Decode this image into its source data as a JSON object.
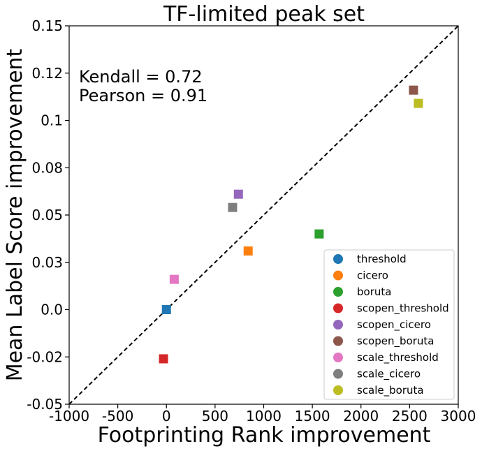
{
  "chart_data": {
    "type": "scatter",
    "title": "TF-limited peak set",
    "xlabel": "Footprinting Rank improvement",
    "ylabel": "Mean Label Score improvement",
    "xlim": [
      -1000,
      3000
    ],
    "ylim": [
      -0.05,
      0.15
    ],
    "x_ticks": [
      {
        "value": -1000,
        "label": "-1000"
      },
      {
        "value": -500,
        "label": "-500"
      },
      {
        "value": 0,
        "label": "0"
      },
      {
        "value": 500,
        "label": "500"
      },
      {
        "value": 1000,
        "label": "1000"
      },
      {
        "value": 1500,
        "label": "1500"
      },
      {
        "value": 2000,
        "label": "2000"
      },
      {
        "value": 2500,
        "label": "2500"
      },
      {
        "value": 3000,
        "label": "3000"
      }
    ],
    "y_ticks": [
      {
        "value": -0.05,
        "label": "-0.05"
      },
      {
        "value": -0.025,
        "label": "-0.02"
      },
      {
        "value": 0.0,
        "label": "0.0"
      },
      {
        "value": 0.025,
        "label": "0.03"
      },
      {
        "value": 0.05,
        "label": "0.05"
      },
      {
        "value": 0.075,
        "label": "0.08"
      },
      {
        "value": 0.1,
        "label": "0.1"
      },
      {
        "value": 0.125,
        "label": "0.12"
      },
      {
        "value": 0.15,
        "label": "0.15"
      }
    ],
    "annotations": [
      "Kendall = 0.72",
      "Pearson = 0.91"
    ],
    "diagonal": {
      "from": [
        -1000,
        -0.05
      ],
      "to": [
        3000,
        0.15
      ],
      "style": "dashed",
      "color": "#000000"
    },
    "grid": false,
    "legend_position": "lower-right",
    "marker": "square",
    "series": [
      {
        "name": "threshold",
        "color": "#1f77b4",
        "x": 0,
        "y": 0.0
      },
      {
        "name": "cicero",
        "color": "#ff7f0e",
        "x": 840,
        "y": 0.031
      },
      {
        "name": "boruta",
        "color": "#2ca02c",
        "x": 1570,
        "y": 0.04
      },
      {
        "name": "scopen_threshold",
        "color": "#d62728",
        "x": -30,
        "y": -0.026
      },
      {
        "name": "scopen_cicero",
        "color": "#9467bd",
        "x": 740,
        "y": 0.061
      },
      {
        "name": "scopen_boruta",
        "color": "#8c564b",
        "x": 2540,
        "y": 0.116
      },
      {
        "name": "scale_threshold",
        "color": "#e377c2",
        "x": 80,
        "y": 0.016
      },
      {
        "name": "scale_cicero",
        "color": "#7f7f7f",
        "x": 680,
        "y": 0.054
      },
      {
        "name": "scale_boruta",
        "color": "#bcbd22",
        "x": 2590,
        "y": 0.109
      }
    ]
  }
}
